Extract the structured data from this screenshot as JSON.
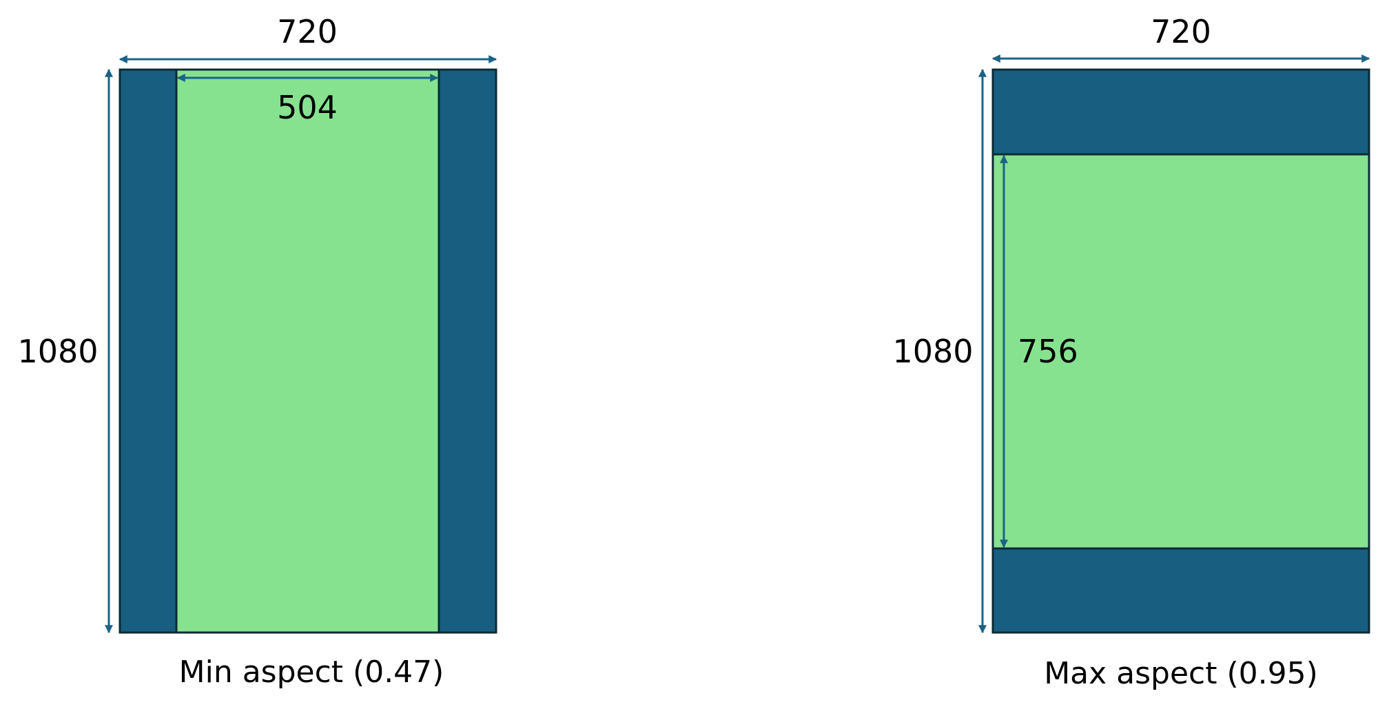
{
  "colors": {
    "outer": "#175E80",
    "inner": "#87E290",
    "arrow": "#1B6286",
    "outline": "#0D2A33",
    "text": "#000000"
  },
  "panels": [
    {
      "width_label": "720",
      "height_label": "1080",
      "inner_label": "504",
      "caption": "Min aspect (0.47)"
    },
    {
      "width_label": "720",
      "height_label": "1080",
      "inner_label": "756",
      "caption": "Max aspect (0.95)"
    }
  ]
}
